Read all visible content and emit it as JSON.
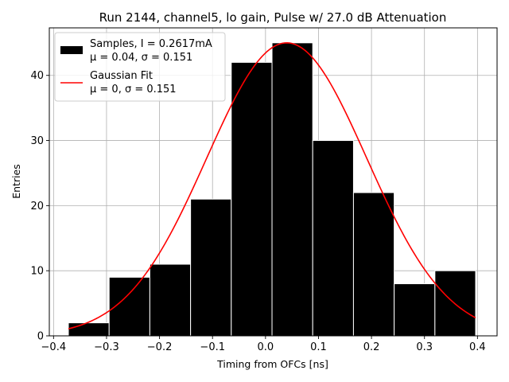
{
  "chart_data": {
    "type": "bar",
    "title": "Run 2144, channel5, lo gain, Pulse w/ 27.0 dB Attenuation",
    "xlabel": "Timing from OFCs [ns]",
    "ylabel": "Entries",
    "xlim": [
      -0.408,
      0.437
    ],
    "ylim": [
      0,
      47.3
    ],
    "xticks": [
      -0.4,
      -0.3,
      -0.2,
      -0.1,
      0.0,
      0.1,
      0.2,
      0.3,
      0.4
    ],
    "xtick_labels": [
      "−0.4",
      "−0.3",
      "−0.2",
      "−0.1",
      "0.0",
      "0.1",
      "0.2",
      "0.3",
      "0.4"
    ],
    "yticks": [
      0,
      10,
      20,
      30,
      40
    ],
    "ytick_labels": [
      "0",
      "10",
      "20",
      "30",
      "40"
    ],
    "grid": true,
    "legend_position": "top-left",
    "bin_edges": [
      -0.372,
      -0.2951,
      -0.2183,
      -0.1414,
      -0.0646,
      0.0123,
      0.0891,
      0.166,
      0.2428,
      0.3197,
      0.3965
    ],
    "histogram": {
      "name": "Samples, I = 0.2617mA",
      "stats": "μ = 0.04, σ = 0.151",
      "values": [
        2,
        9,
        11,
        21,
        42,
        45,
        30,
        22,
        8,
        10
      ],
      "color": "#000000"
    },
    "fit": {
      "name": "Gaussian Fit",
      "stats": "μ = 0, σ = 0.151",
      "mu_curve": 0.04,
      "sigma": 0.151,
      "amplitude": 45,
      "x_range": [
        -0.372,
        0.3965
      ],
      "color": "#ff0000"
    }
  }
}
